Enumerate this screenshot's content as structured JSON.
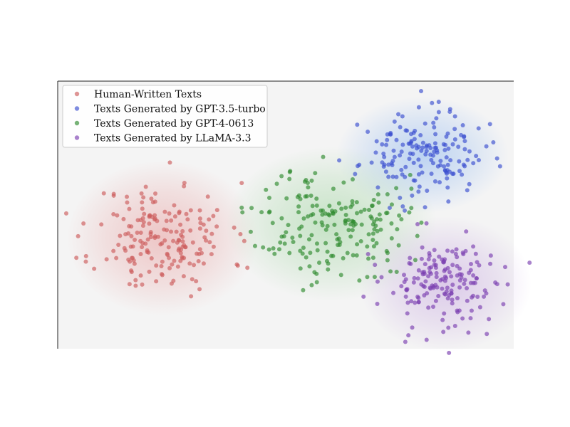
{
  "chart_data": {
    "type": "scatter",
    "title": "",
    "xlabel": "",
    "ylabel": "",
    "grid": false,
    "legend_position": "top-left",
    "xlim": [
      0,
      100
    ],
    "ylim": [
      0,
      58
    ],
    "series": [
      {
        "name": "Human-Written Texts",
        "color": "#cd5c5c",
        "glow": "#e8a0a0",
        "center": [
          23,
          24
        ],
        "spread": [
          10,
          8
        ],
        "count": 185,
        "seed": 11
      },
      {
        "name": "Texts Generated by GPT-3.5-turbo",
        "color": "#3a4fd0",
        "glow": "#8fb8f0",
        "center": [
          80,
          42
        ],
        "spread": [
          9,
          6
        ],
        "count": 165,
        "seed": 23
      },
      {
        "name": "Texts Generated by GPT-4-0613",
        "color": "#2e8b2e",
        "glow": "#9ed49e",
        "center": [
          60,
          27
        ],
        "spread": [
          11,
          8
        ],
        "count": 190,
        "seed": 37
      },
      {
        "name": "Texts Generated by LLaMA-3.3",
        "color": "#7b3fb0",
        "glow": "#c7a8e0",
        "center": [
          85,
          14
        ],
        "spread": [
          9,
          7
        ],
        "count": 170,
        "seed": 53
      }
    ]
  }
}
